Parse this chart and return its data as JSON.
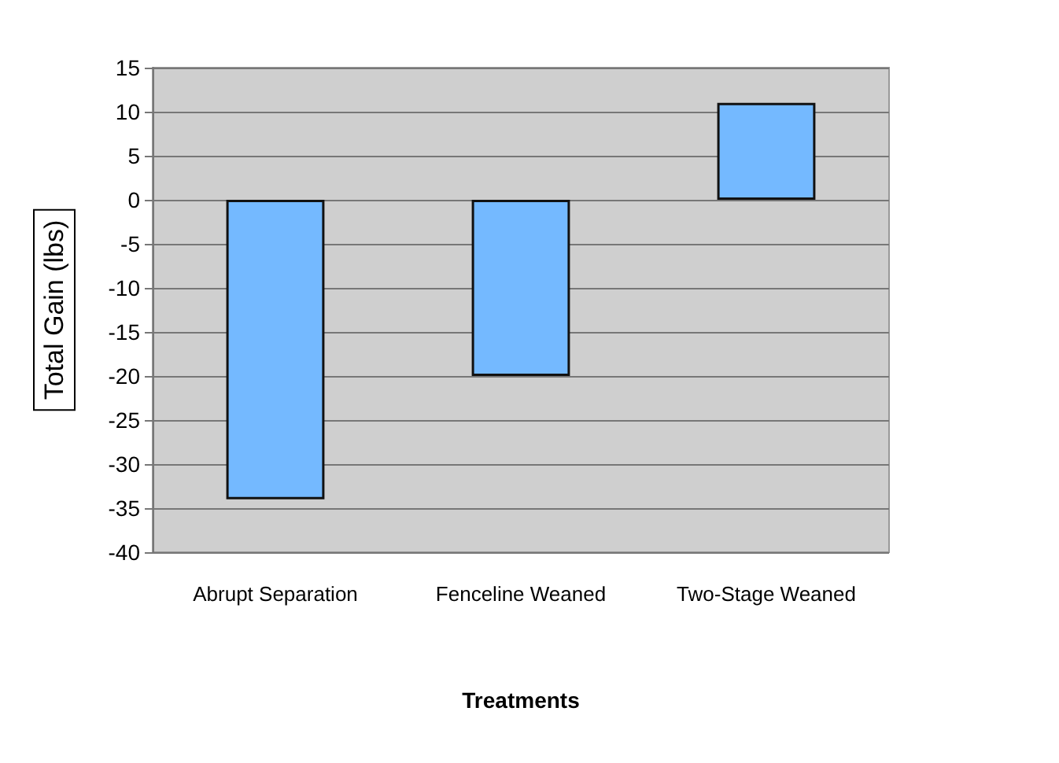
{
  "chart_data": {
    "type": "bar",
    "xlabel": "Treatments",
    "ylabel": "Total Gain (lbs)",
    "categories": [
      "Abrupt Separation",
      "Fenceline Weaned",
      "Two-Stage Weaned"
    ],
    "values": [
      -34,
      -20,
      11
    ],
    "color": "#74b9ff",
    "ylim": [
      -40,
      15
    ],
    "yticks": [
      -40,
      -35,
      -30,
      -25,
      -20,
      -15,
      -10,
      -5,
      0,
      5,
      10,
      15
    ],
    "grid": "y"
  }
}
